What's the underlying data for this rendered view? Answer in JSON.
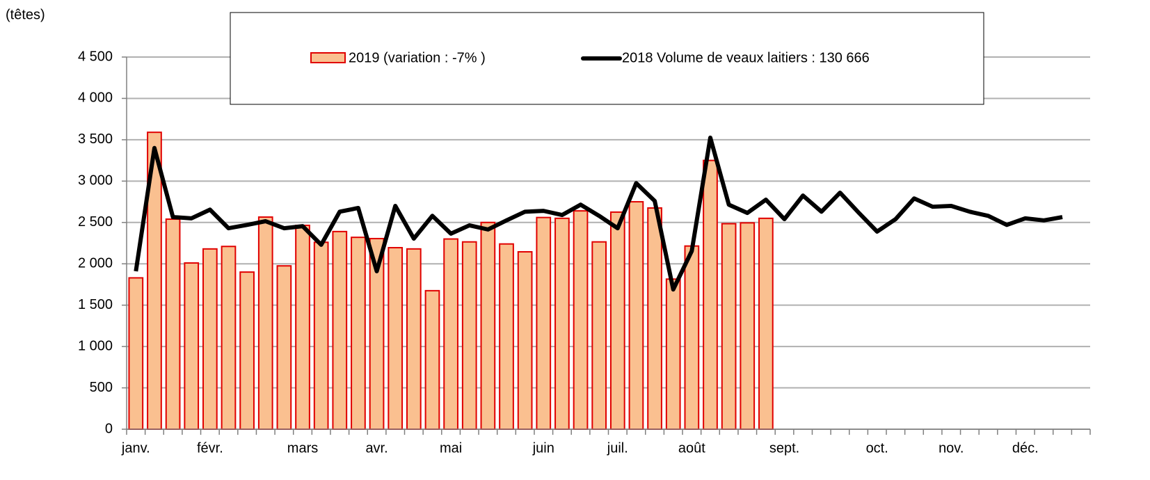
{
  "chart_data": {
    "type": "bar_line",
    "y_axis_label": "(têtes)",
    "categories": [
      "janv.",
      null,
      null,
      null,
      "févr.",
      null,
      null,
      null,
      null,
      "mars",
      null,
      null,
      null,
      "avr.",
      null,
      null,
      null,
      "mai",
      null,
      null,
      null,
      null,
      "juin",
      null,
      null,
      null,
      "juil.",
      null,
      null,
      null,
      "août",
      null,
      null,
      null,
      null,
      "sept.",
      null,
      null,
      null,
      null,
      "oct.",
      null,
      null,
      null,
      "nov.",
      null,
      null,
      null,
      "déc.",
      null,
      null,
      null
    ],
    "series": [
      {
        "name": "2019 (variation : -7% )",
        "type": "bar",
        "color": "#fac090",
        "edge_color": "#e00000",
        "values": [
          1830,
          3590,
          2540,
          2010,
          2180,
          2210,
          1900,
          2565,
          1975,
          2465,
          2260,
          2390,
          2320,
          2305,
          2195,
          2180,
          1675,
          2300,
          2265,
          2500,
          2240,
          2145,
          2560,
          2550,
          2640,
          2265,
          2625,
          2750,
          2675,
          1815,
          2215,
          3250,
          2485,
          2495,
          2550,
          null,
          null,
          null,
          null,
          null,
          null,
          null,
          null,
          null,
          null,
          null,
          null,
          null,
          null,
          null,
          null,
          null
        ]
      },
      {
        "name": "2018 Volume de veaux laitiers : 130 666",
        "type": "line",
        "color": "#000000",
        "values": [
          1910,
          3400,
          2565,
          2550,
          2655,
          2430,
          2470,
          2515,
          2430,
          2455,
          2230,
          2630,
          2675,
          1910,
          2700,
          2305,
          2580,
          2365,
          2465,
          2415,
          2525,
          2630,
          2640,
          2590,
          2715,
          2580,
          2430,
          2975,
          2760,
          1690,
          2155,
          3525,
          2715,
          2615,
          2775,
          2540,
          2825,
          2630,
          2860,
          2620,
          2390,
          2540,
          2790,
          2690,
          2700,
          2630,
          2580,
          2470,
          2550,
          2525,
          2565,
          null
        ]
      }
    ],
    "ylim": [
      0,
      4500
    ],
    "yticks": [
      0,
      500,
      {
        "value": 1000,
        "label": "1 000"
      },
      {
        "value": 1500,
        "label": "1 500"
      },
      {
        "value": 2000,
        "label": "2 000"
      },
      {
        "value": 2500,
        "label": "2 500"
      },
      {
        "value": 3000,
        "label": "3 000"
      },
      {
        "value": 3500,
        "label": "3 500"
      },
      {
        "value": 4000,
        "label": "4 000"
      },
      {
        "value": 4500,
        "label": "4 500"
      }
    ],
    "grid": true,
    "legend": "top"
  }
}
